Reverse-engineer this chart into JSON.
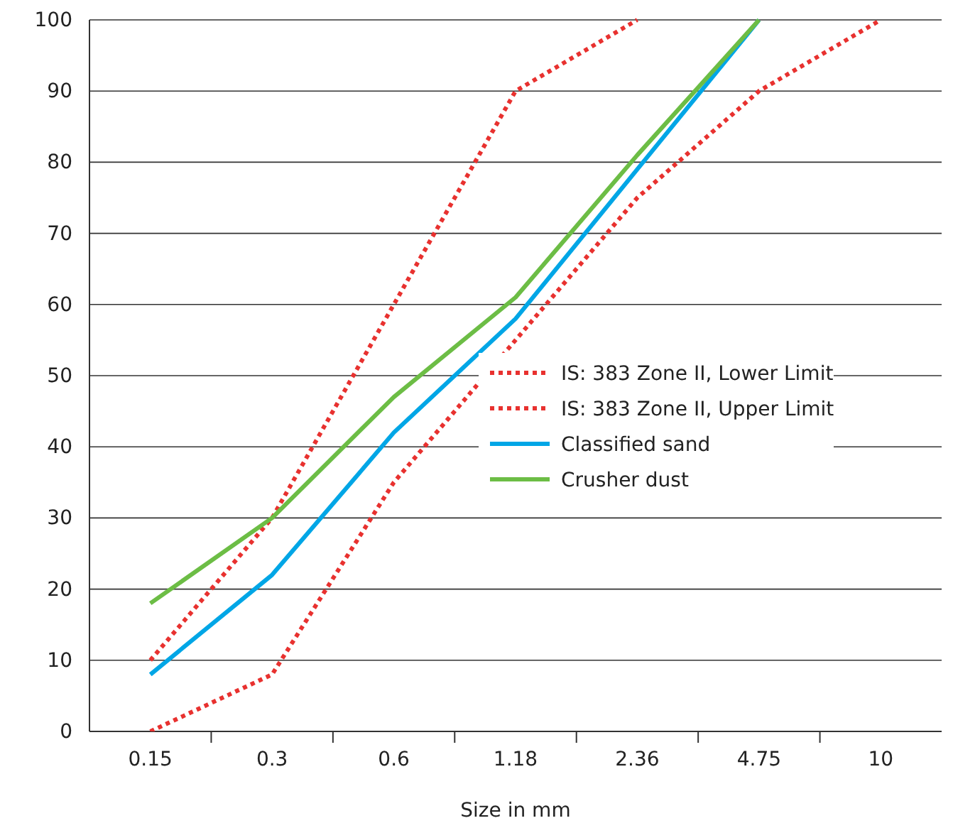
{
  "chart_data": {
    "type": "line",
    "xlabel": "Size in mm",
    "categories": [
      "0.15",
      "0.3",
      "0.6",
      "1.18",
      "2.36",
      "4.75",
      "10"
    ],
    "series": [
      {
        "name": "IS: 383 Zone II, Lower Limit",
        "color": "#e8312f",
        "line_style": "dotted",
        "values": [
          0,
          8,
          35,
          55,
          75,
          90,
          100
        ]
      },
      {
        "name": "IS: 383 Zone II, Upper Limit",
        "color": "#e8312f",
        "line_style": "dotted",
        "values": [
          10,
          30,
          60,
          90,
          100,
          null,
          null
        ]
      },
      {
        "name": "Classified sand",
        "color": "#00a6e6",
        "line_style": "solid",
        "values": [
          8,
          22,
          42,
          58,
          79,
          100,
          null
        ]
      },
      {
        "name": "Crusher dust",
        "color": "#6cbd45",
        "line_style": "solid",
        "values": [
          18,
          30,
          47,
          61,
          81,
          100,
          null
        ]
      }
    ],
    "ylim": [
      0,
      100
    ],
    "yticks": [
      0,
      10,
      20,
      30,
      40,
      50,
      60,
      70,
      80,
      90,
      100
    ],
    "grid": "y",
    "legend": "right",
    "marker": "none"
  }
}
